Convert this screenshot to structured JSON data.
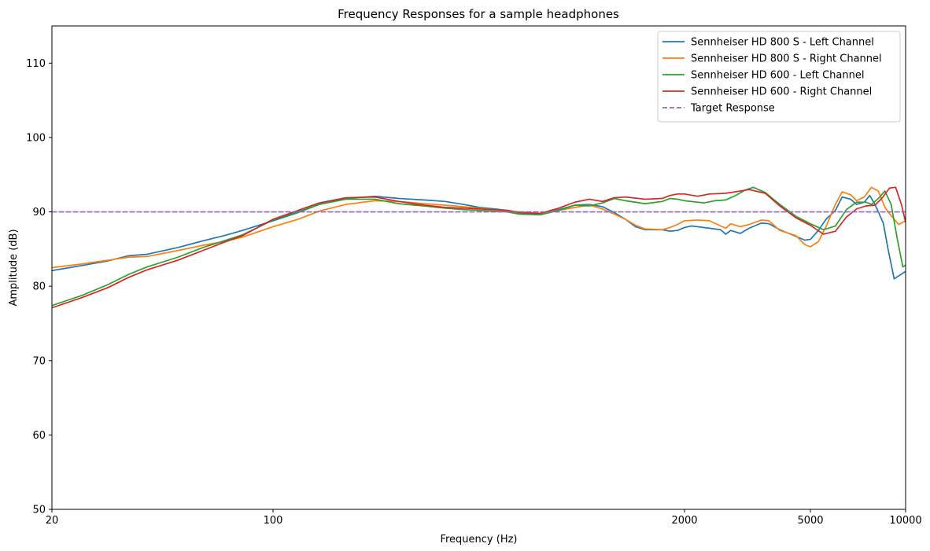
{
  "chart_data": {
    "type": "line",
    "title": "Frequency Responses for a sample headphones",
    "xlabel": "Frequency (Hz)",
    "ylabel": "Amplitude (dB)",
    "xscale": "log",
    "xlim": [
      20,
      10000
    ],
    "ylim": [
      50,
      115
    ],
    "xticks": [
      20,
      100,
      2000,
      5000,
      10000
    ],
    "xtick_labels": [
      "20",
      "100",
      "2000",
      "5000",
      "10000"
    ],
    "yticks": [
      50,
      60,
      70,
      80,
      90,
      100,
      110
    ],
    "ytick_labels": [
      "50",
      "60",
      "70",
      "80",
      "90",
      "100",
      "110"
    ],
    "grid": false,
    "legend_position": "top-right",
    "series": [
      {
        "name": "Sennheiser HD 800 S - Left Channel",
        "color": "#1f77b4",
        "dash": "solid",
        "points": [
          [
            20,
            82.1
          ],
          [
            25,
            82.8
          ],
          [
            30,
            83.4
          ],
          [
            35,
            84.1
          ],
          [
            40,
            84.3
          ],
          [
            50,
            85.2
          ],
          [
            60,
            86.1
          ],
          [
            70,
            86.8
          ],
          [
            80,
            87.5
          ],
          [
            100,
            88.8
          ],
          [
            120,
            89.9
          ],
          [
            140,
            91.0
          ],
          [
            170,
            91.8
          ],
          [
            210,
            92.1
          ],
          [
            250,
            91.8
          ],
          [
            300,
            91.6
          ],
          [
            350,
            91.4
          ],
          [
            400,
            91.0
          ],
          [
            450,
            90.6
          ],
          [
            500,
            90.4
          ],
          [
            550,
            90.2
          ],
          [
            600,
            89.9
          ],
          [
            650,
            89.7
          ],
          [
            700,
            89.8
          ],
          [
            800,
            90.3
          ],
          [
            900,
            90.9
          ],
          [
            1000,
            91.0
          ],
          [
            1100,
            90.7
          ],
          [
            1200,
            89.9
          ],
          [
            1300,
            89.0
          ],
          [
            1400,
            88.0
          ],
          [
            1500,
            87.6
          ],
          [
            1700,
            87.6
          ],
          [
            1800,
            87.4
          ],
          [
            1900,
            87.5
          ],
          [
            2000,
            87.9
          ],
          [
            2100,
            88.1
          ],
          [
            2200,
            88.0
          ],
          [
            2400,
            87.8
          ],
          [
            2600,
            87.6
          ],
          [
            2700,
            87.0
          ],
          [
            2800,
            87.5
          ],
          [
            3000,
            87.1
          ],
          [
            3200,
            87.8
          ],
          [
            3500,
            88.5
          ],
          [
            3700,
            88.4
          ],
          [
            4000,
            87.6
          ],
          [
            4500,
            86.7
          ],
          [
            4800,
            86.2
          ],
          [
            5000,
            86.3
          ],
          [
            5300,
            87.5
          ],
          [
            5600,
            89.0
          ],
          [
            6000,
            90.2
          ],
          [
            6300,
            92.0
          ],
          [
            6700,
            91.7
          ],
          [
            7000,
            91.0
          ],
          [
            7400,
            91.3
          ],
          [
            7700,
            92.2
          ],
          [
            8000,
            91.0
          ],
          [
            8500,
            88.5
          ],
          [
            8800,
            85.0
          ],
          [
            9200,
            81.0
          ],
          [
            9600,
            81.5
          ],
          [
            10000,
            82.0
          ]
        ]
      },
      {
        "name": "Sennheiser HD 800 S - Right Channel",
        "color": "#ff7f0e",
        "dash": "solid",
        "points": [
          [
            20,
            82.5
          ],
          [
            25,
            83.0
          ],
          [
            30,
            83.5
          ],
          [
            35,
            83.9
          ],
          [
            40,
            84.0
          ],
          [
            50,
            84.8
          ],
          [
            60,
            85.5
          ],
          [
            70,
            86.0
          ],
          [
            80,
            86.6
          ],
          [
            100,
            88.0
          ],
          [
            120,
            89.0
          ],
          [
            140,
            90.1
          ],
          [
            170,
            91.0
          ],
          [
            210,
            91.5
          ],
          [
            250,
            91.4
          ],
          [
            300,
            91.1
          ],
          [
            350,
            90.9
          ],
          [
            400,
            90.7
          ],
          [
            450,
            90.5
          ],
          [
            500,
            90.3
          ],
          [
            550,
            90.2
          ],
          [
            600,
            90.0
          ],
          [
            700,
            89.8
          ],
          [
            800,
            90.2
          ],
          [
            900,
            90.6
          ],
          [
            1000,
            90.9
          ],
          [
            1100,
            90.4
          ],
          [
            1200,
            89.7
          ],
          [
            1300,
            89.0
          ],
          [
            1400,
            88.2
          ],
          [
            1500,
            87.7
          ],
          [
            1700,
            87.6
          ],
          [
            1800,
            87.9
          ],
          [
            1900,
            88.3
          ],
          [
            2000,
            88.8
          ],
          [
            2200,
            88.9
          ],
          [
            2400,
            88.8
          ],
          [
            2600,
            88.1
          ],
          [
            2700,
            87.8
          ],
          [
            2800,
            88.4
          ],
          [
            3000,
            88.0
          ],
          [
            3200,
            88.3
          ],
          [
            3500,
            88.9
          ],
          [
            3700,
            88.8
          ],
          [
            4000,
            87.5
          ],
          [
            4500,
            86.8
          ],
          [
            4800,
            85.6
          ],
          [
            5000,
            85.3
          ],
          [
            5300,
            86.0
          ],
          [
            5600,
            88.0
          ],
          [
            6000,
            91.0
          ],
          [
            6300,
            92.7
          ],
          [
            6700,
            92.3
          ],
          [
            7000,
            91.5
          ],
          [
            7400,
            92.0
          ],
          [
            7800,
            93.3
          ],
          [
            8200,
            92.8
          ],
          [
            8600,
            90.6
          ],
          [
            9000,
            89.5
          ],
          [
            9500,
            88.3
          ],
          [
            10000,
            88.8
          ]
        ]
      },
      {
        "name": "Sennheiser HD 600 - Left Channel",
        "color": "#2ca02c",
        "dash": "solid",
        "points": [
          [
            20,
            77.4
          ],
          [
            25,
            78.8
          ],
          [
            30,
            80.2
          ],
          [
            35,
            81.6
          ],
          [
            40,
            82.6
          ],
          [
            50,
            83.9
          ],
          [
            60,
            85.2
          ],
          [
            70,
            86.1
          ],
          [
            80,
            86.9
          ],
          [
            100,
            88.9
          ],
          [
            120,
            90.0
          ],
          [
            140,
            91.0
          ],
          [
            170,
            91.7
          ],
          [
            210,
            91.7
          ],
          [
            250,
            91.1
          ],
          [
            300,
            90.8
          ],
          [
            350,
            90.5
          ],
          [
            400,
            90.3
          ],
          [
            450,
            90.2
          ],
          [
            500,
            90.1
          ],
          [
            550,
            90.0
          ],
          [
            600,
            89.7
          ],
          [
            700,
            89.6
          ],
          [
            800,
            90.2
          ],
          [
            900,
            90.9
          ],
          [
            1000,
            90.8
          ],
          [
            1100,
            91.2
          ],
          [
            1200,
            91.8
          ],
          [
            1300,
            91.5
          ],
          [
            1400,
            91.3
          ],
          [
            1500,
            91.1
          ],
          [
            1700,
            91.4
          ],
          [
            1800,
            91.8
          ],
          [
            1900,
            91.7
          ],
          [
            2000,
            91.5
          ],
          [
            2100,
            91.4
          ],
          [
            2300,
            91.2
          ],
          [
            2500,
            91.5
          ],
          [
            2700,
            91.6
          ],
          [
            2900,
            92.2
          ],
          [
            3100,
            92.9
          ],
          [
            3300,
            93.3
          ],
          [
            3600,
            92.6
          ],
          [
            4000,
            91.0
          ],
          [
            4500,
            89.4
          ],
          [
            5000,
            88.4
          ],
          [
            5500,
            87.6
          ],
          [
            6000,
            88.1
          ],
          [
            6500,
            90.3
          ],
          [
            7000,
            91.3
          ],
          [
            7500,
            91.3
          ],
          [
            7800,
            91.0
          ],
          [
            8200,
            91.8
          ],
          [
            8600,
            92.8
          ],
          [
            9000,
            91.0
          ],
          [
            9400,
            86.5
          ],
          [
            9800,
            82.6
          ],
          [
            10000,
            82.8
          ]
        ]
      },
      {
        "name": "Sennheiser HD 600 - Right Channel",
        "color": "#d62728",
        "dash": "solid",
        "points": [
          [
            20,
            77.1
          ],
          [
            25,
            78.5
          ],
          [
            30,
            79.8
          ],
          [
            35,
            81.2
          ],
          [
            40,
            82.2
          ],
          [
            50,
            83.5
          ],
          [
            60,
            84.8
          ],
          [
            70,
            85.9
          ],
          [
            80,
            86.8
          ],
          [
            100,
            89.0
          ],
          [
            120,
            90.2
          ],
          [
            140,
            91.2
          ],
          [
            170,
            91.9
          ],
          [
            210,
            92.0
          ],
          [
            250,
            91.4
          ],
          [
            300,
            90.9
          ],
          [
            350,
            90.6
          ],
          [
            400,
            90.5
          ],
          [
            450,
            90.4
          ],
          [
            500,
            90.3
          ],
          [
            550,
            90.2
          ],
          [
            600,
            89.9
          ],
          [
            700,
            89.8
          ],
          [
            800,
            90.5
          ],
          [
            900,
            91.3
          ],
          [
            1000,
            91.7
          ],
          [
            1100,
            91.4
          ],
          [
            1200,
            91.9
          ],
          [
            1300,
            92.0
          ],
          [
            1500,
            91.7
          ],
          [
            1700,
            91.8
          ],
          [
            1800,
            92.2
          ],
          [
            1900,
            92.4
          ],
          [
            2000,
            92.4
          ],
          [
            2200,
            92.1
          ],
          [
            2400,
            92.4
          ],
          [
            2700,
            92.5
          ],
          [
            3000,
            92.8
          ],
          [
            3200,
            93.0
          ],
          [
            3600,
            92.5
          ],
          [
            4000,
            90.8
          ],
          [
            4500,
            89.2
          ],
          [
            5000,
            88.2
          ],
          [
            5500,
            87.0
          ],
          [
            6000,
            87.4
          ],
          [
            6500,
            89.3
          ],
          [
            7000,
            90.4
          ],
          [
            7500,
            90.8
          ],
          [
            8000,
            90.9
          ],
          [
            8400,
            91.8
          ],
          [
            8900,
            93.2
          ],
          [
            9300,
            93.3
          ],
          [
            9700,
            91.0
          ],
          [
            10000,
            88.6
          ]
        ]
      },
      {
        "name": "Target Response",
        "color": "#9467bd",
        "dash": "dashed",
        "points": [
          [
            20,
            90
          ],
          [
            10000,
            90
          ]
        ]
      }
    ]
  }
}
